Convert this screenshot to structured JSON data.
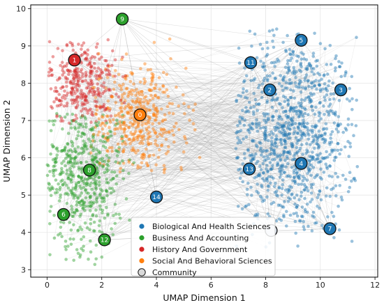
{
  "chart_data": {
    "type": "scatter",
    "title": "",
    "xlabel": "UMAP Dimension 1",
    "ylabel": "UMAP Dimension 2",
    "xlim": [
      -0.6,
      12.1
    ],
    "ylim": [
      2.8,
      10.1
    ],
    "xticks": [
      0,
      2,
      4,
      6,
      8,
      10,
      12
    ],
    "yticks": [
      3,
      4,
      5,
      6,
      7,
      8,
      9,
      10
    ],
    "grid": true,
    "legend_position": "bottom-center",
    "series": [
      {
        "name": "Biological And Health Sciences",
        "color": "#1f77b4"
      },
      {
        "name": "Business And Accounting",
        "color": "#2ca02c"
      },
      {
        "name": "History And Government",
        "color": "#d62728"
      },
      {
        "name": "Social And Behavioral Sciences",
        "color": "#ff7f0e"
      }
    ],
    "community_legend_label": "Community",
    "communities": [
      {
        "id": "0",
        "x": 3.4,
        "y": 7.15,
        "category": "Social And Behavioral Sciences"
      },
      {
        "id": "1",
        "x": 1.0,
        "y": 8.62,
        "category": "History And Government"
      },
      {
        "id": "2",
        "x": 8.15,
        "y": 7.82,
        "category": "Biological And Health Sciences"
      },
      {
        "id": "3",
        "x": 10.75,
        "y": 7.82,
        "category": "Biological And Health Sciences"
      },
      {
        "id": "4",
        "x": 9.3,
        "y": 5.85,
        "category": "Biological And Health Sciences"
      },
      {
        "id": "5",
        "x": 9.3,
        "y": 9.15,
        "category": "Biological And Health Sciences"
      },
      {
        "id": "6",
        "x": 0.6,
        "y": 4.48,
        "category": "Business And Accounting"
      },
      {
        "id": "7",
        "x": 10.35,
        "y": 4.1,
        "category": "Biological And Health Sciences"
      },
      {
        "id": "8",
        "x": 1.55,
        "y": 5.67,
        "category": "Business And Accounting"
      },
      {
        "id": "9",
        "x": 2.75,
        "y": 9.72,
        "category": "Business And Accounting"
      },
      {
        "id": "11",
        "x": 7.45,
        "y": 8.55,
        "category": "Biological And Health Sciences"
      },
      {
        "id": "12",
        "x": 2.1,
        "y": 3.8,
        "category": "Business And Accounting"
      },
      {
        "id": "13",
        "x": 7.4,
        "y": 5.7,
        "category": "Biological And Health Sciences"
      },
      {
        "id": "14",
        "x": 4.0,
        "y": 4.95,
        "category": "Biological And Health Sciences"
      },
      {
        "id": "",
        "x": 8.2,
        "y": 4.05,
        "category": "Biological And Health Sciences"
      }
    ],
    "clusters": [
      {
        "category": "Biological And Health Sciences",
        "cx": 8.9,
        "cy": 6.6,
        "sx": 1.25,
        "sy": 1.35,
        "xr": [
          6.9,
          11.4
        ],
        "yr": [
          3.5,
          9.5
        ],
        "n": 1000
      },
      {
        "category": "Business And Accounting",
        "cx": 1.3,
        "cy": 5.6,
        "sx": 0.75,
        "sy": 1.0,
        "xr": [
          0.0,
          3.2
        ],
        "yr": [
          3.1,
          7.2
        ],
        "n": 520
      },
      {
        "category": "History And Government",
        "cx": 1.3,
        "cy": 8.0,
        "sx": 0.6,
        "sy": 0.6,
        "xr": [
          0.0,
          3.0
        ],
        "yr": [
          6.9,
          9.2
        ],
        "n": 320
      },
      {
        "category": "Social And Behavioral Sciences",
        "cx": 3.3,
        "cy": 7.0,
        "sx": 0.9,
        "sy": 0.75,
        "xr": [
          1.5,
          5.6
        ],
        "yr": [
          5.6,
          9.3
        ],
        "n": 430
      }
    ]
  }
}
